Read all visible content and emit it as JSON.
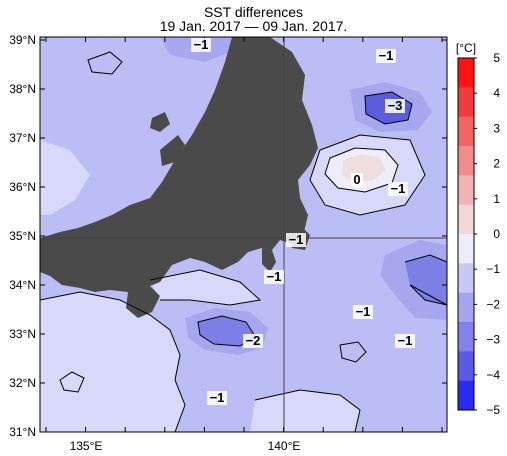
{
  "title": "SST differences",
  "subtitle": "19 Jan. 2017 — 09 Jan. 2017.",
  "colors": {
    "land": "#4a4a4a",
    "sea_base": "#bcbdf5",
    "sea_light": "#d8d9fa",
    "sea_mid": "#a6a7ee",
    "sea_dark": "#7d7fe4",
    "sea_darker": "#5b5ddb",
    "warm": "#f1dede",
    "near_zero": "#eeeefb"
  },
  "lat_labels": [
    "39°N",
    "38°N",
    "37°N",
    "36°N",
    "35°N",
    "34°N",
    "33°N",
    "32°N",
    "31°N"
  ],
  "lon_labels": [
    "135°E",
    "140°E"
  ],
  "contour_labels": [
    {
      "text": "−1",
      "name": "contour-label-north"
    },
    {
      "text": "−1",
      "name": "contour-label-northeast"
    },
    {
      "text": "−3",
      "name": "contour-label-minus3"
    },
    {
      "text": "0",
      "name": "contour-label-zero"
    },
    {
      "text": "−1",
      "name": "contour-label-east"
    },
    {
      "text": "−1",
      "name": "contour-label-bay"
    },
    {
      "text": "−1",
      "name": "contour-label-south-coast"
    },
    {
      "text": "−1",
      "name": "contour-label-offshore"
    },
    {
      "text": "−2",
      "name": "contour-label-minus2"
    },
    {
      "text": "−1",
      "name": "contour-label-southeast"
    },
    {
      "text": "−1",
      "name": "contour-label-south"
    }
  ],
  "colorbar": {
    "unit": "[°C]",
    "ticks": [
      "5",
      "4",
      "3",
      "2",
      "1",
      "0",
      "−1",
      "−2",
      "−3",
      "−4",
      "−5"
    ],
    "colors": [
      "#ff1414",
      "#f23c3c",
      "#f06464",
      "#f08c8c",
      "#f0b4b4",
      "#f2d8d8",
      "#ececfb",
      "#c8c8f5",
      "#a6a6ef",
      "#8282ea",
      "#5a5ae6",
      "#2a2af0"
    ]
  }
}
